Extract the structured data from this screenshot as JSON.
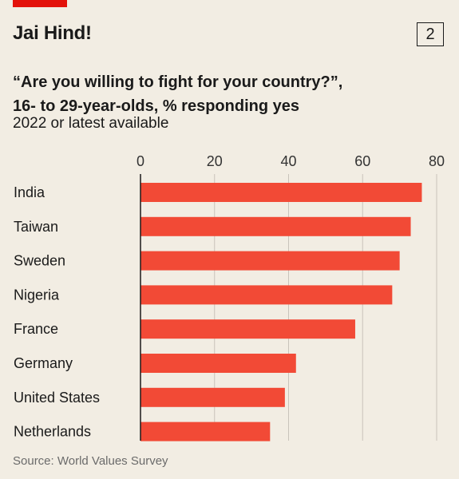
{
  "header": {
    "title": "Jai Hind!",
    "badge": "2",
    "subtitle": "“Are you willing to fight for your country?”, 16- to 29-year-olds, % responding yes",
    "subtitle_line1": "“Are you willing to fight for your country?”,",
    "subtitle_line2": "16- to 29-year-olds, % responding yes",
    "note": "2022 or latest available"
  },
  "footer": {
    "source": "Source: World Values Survey"
  },
  "colors": {
    "accent": "#e3120b",
    "bar": "#f24a36",
    "background": "#f2ede3",
    "grid": "#c9c4bb"
  },
  "chart_data": {
    "type": "bar",
    "orientation": "horizontal",
    "title": "Jai Hind!",
    "subtitle": "“Are you willing to fight for your country?”, 16- to 29-year-olds, % responding yes",
    "categories": [
      "India",
      "Taiwan",
      "Sweden",
      "Nigeria",
      "France",
      "Germany",
      "United States",
      "Netherlands"
    ],
    "values": [
      76,
      73,
      70,
      68,
      58,
      42,
      39,
      35
    ],
    "ticks": [
      0,
      20,
      40,
      60,
      80
    ],
    "tick_labels": [
      "0",
      "20",
      "40",
      "60",
      "80"
    ],
    "xlim": [
      0,
      80
    ],
    "xlabel": "",
    "ylabel": "",
    "grid": true,
    "axis_position": "top"
  }
}
